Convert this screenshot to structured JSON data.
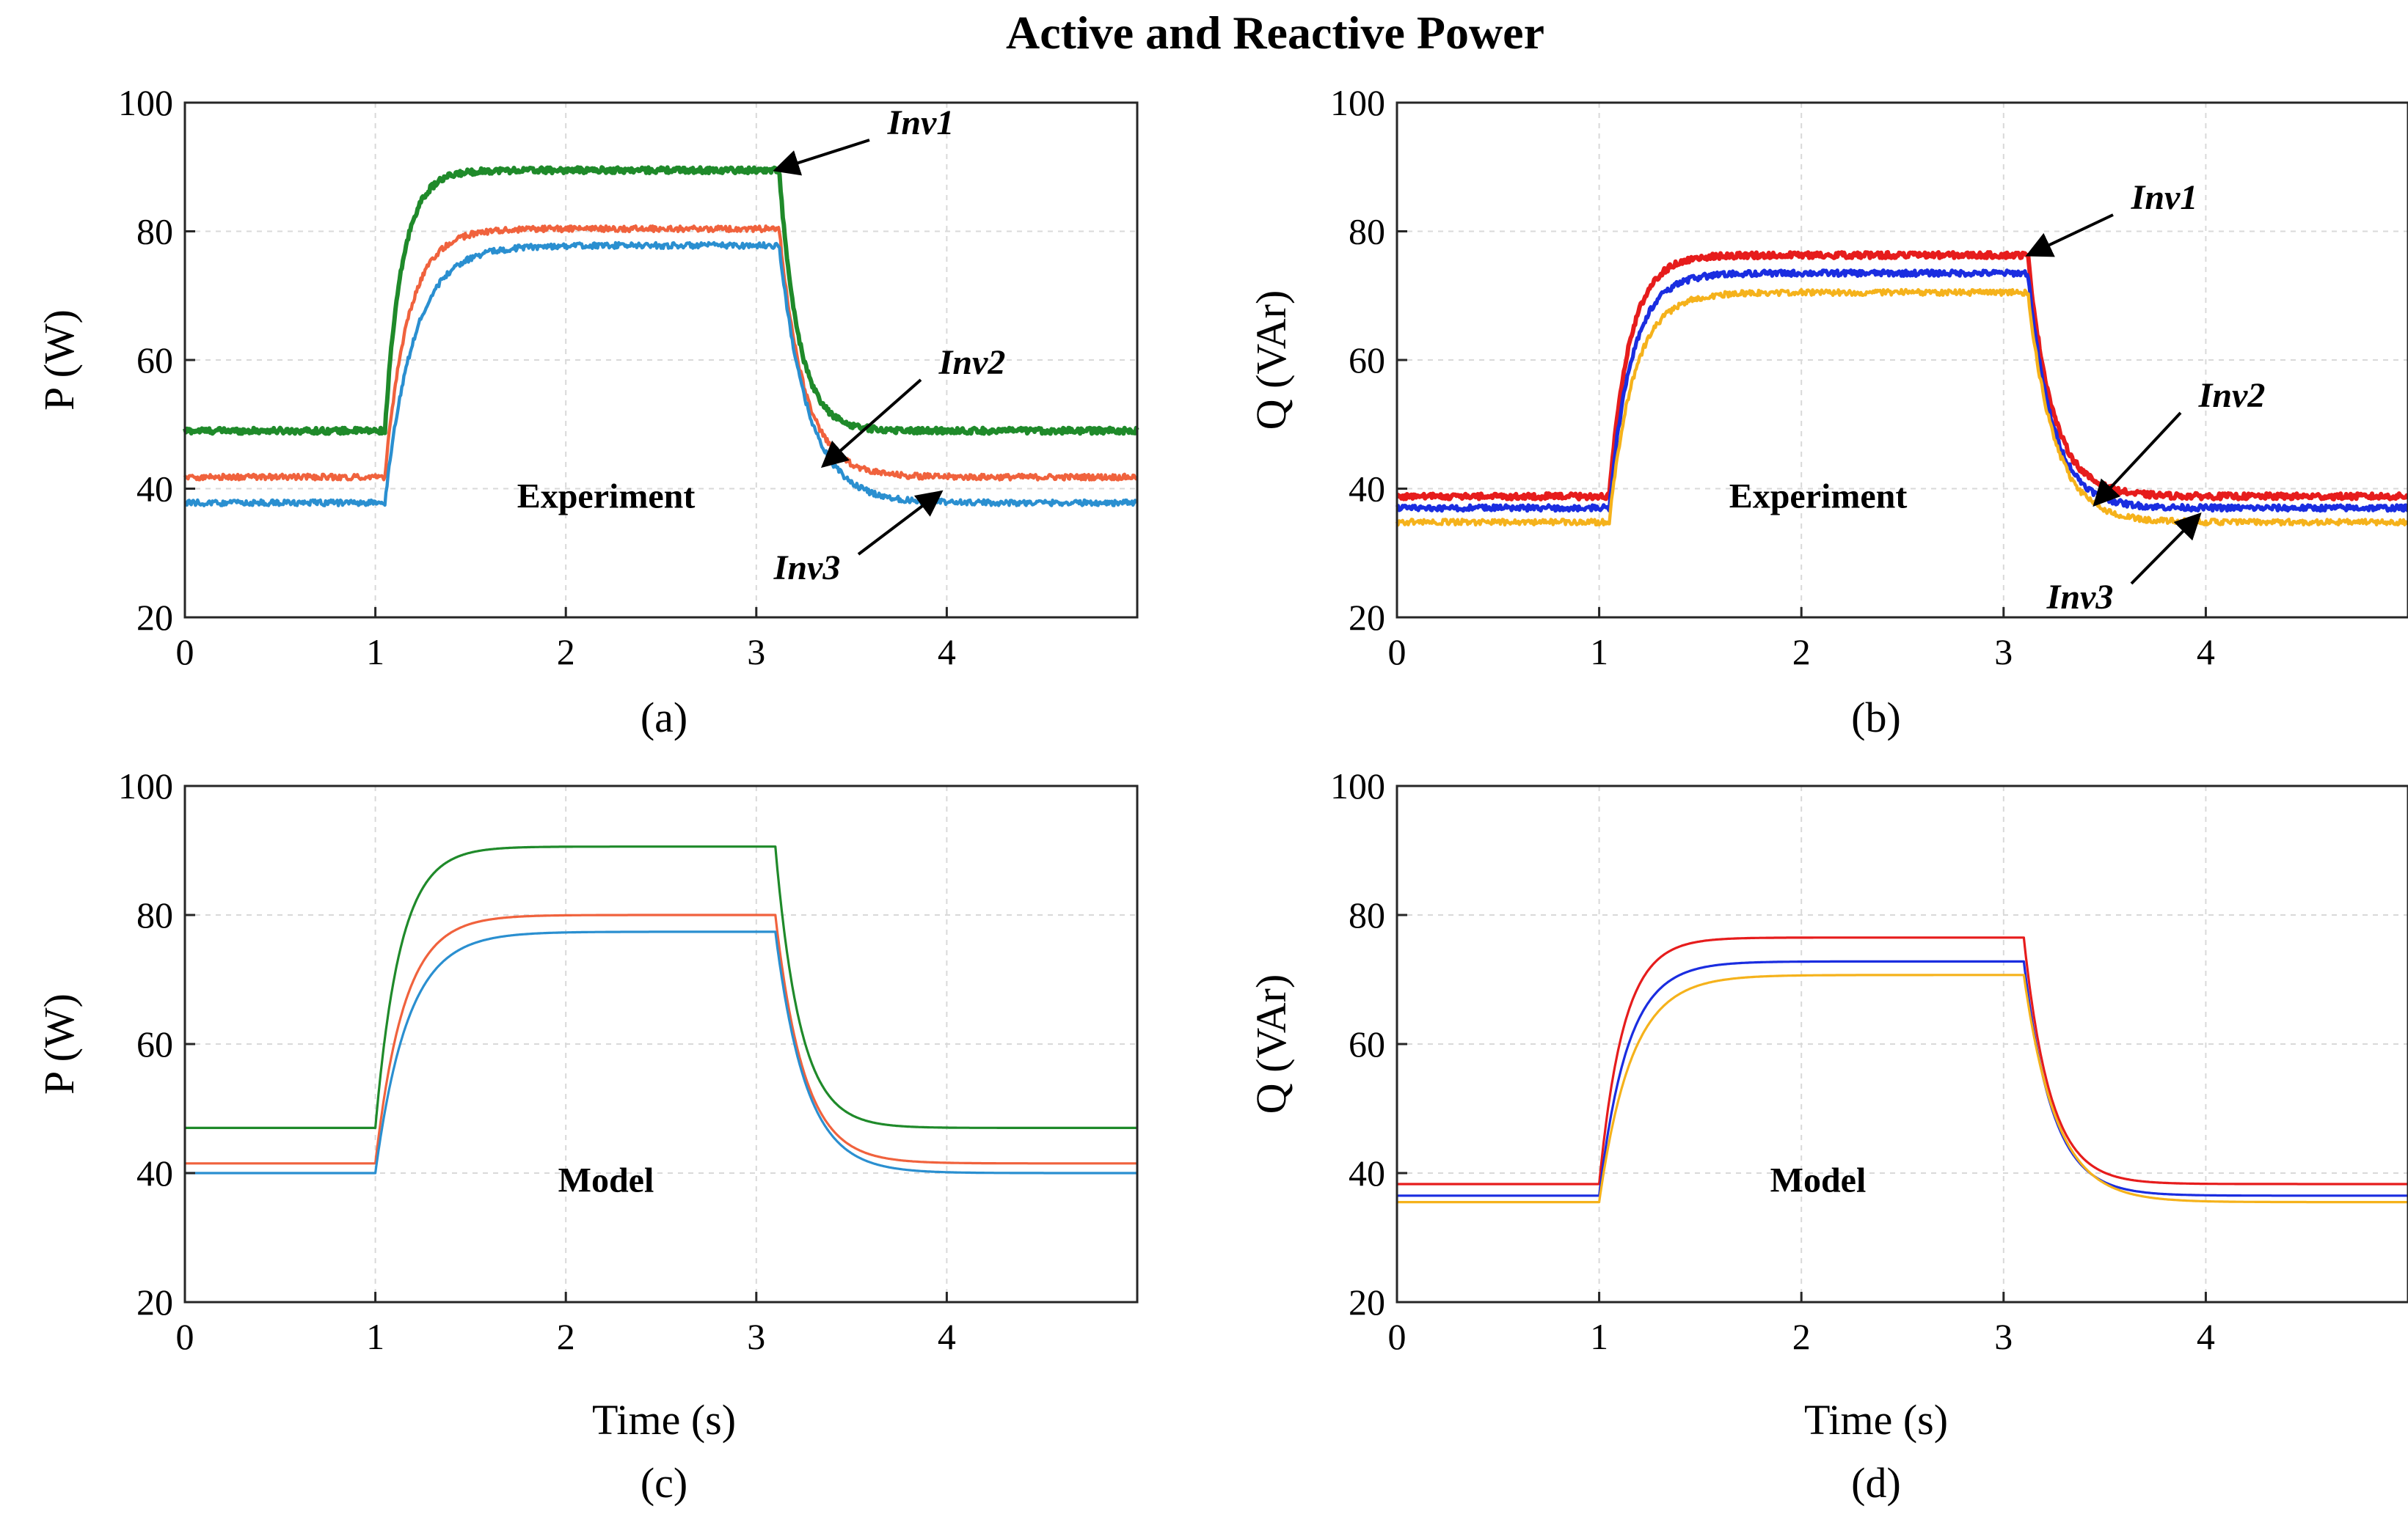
{
  "figure": {
    "title": "Active and Reactive Power"
  },
  "chart_data": [
    {
      "panel": "a",
      "type": "line",
      "caption": "(a)",
      "note": "Experiment",
      "ylabel": "P (W)",
      "xlabel": "",
      "xlim": [
        0,
        5
      ],
      "ylim": [
        20,
        100
      ],
      "xticks": [
        0,
        1,
        2,
        3,
        4
      ],
      "yticks": [
        20,
        40,
        60,
        80,
        100
      ],
      "grid": true,
      "noisy": true,
      "series": [
        {
          "name": "Inv1",
          "color": "#1f8a2a",
          "weight": 3.0,
          "base": 49,
          "high": 89.5,
          "t_on": 1.05,
          "t_off": 3.12,
          "tau_rise": 0.09,
          "tau_fall": 0.1
        },
        {
          "name": "Inv2",
          "color": "#f0623d",
          "weight": 2.2,
          "base": 41.8,
          "high": 80.4,
          "t_on": 1.05,
          "t_off": 3.12,
          "tau_rise": 0.12,
          "tau_fall": 0.13
        },
        {
          "name": "Inv3",
          "color": "#2a8fd0",
          "weight": 2.2,
          "base": 37.8,
          "high": 77.8,
          "t_on": 1.05,
          "t_off": 3.12,
          "tau_rise": 0.15,
          "tau_fall": 0.15
        }
      ],
      "annotations": [
        {
          "text": "Inv1",
          "series": "Inv1",
          "point": [
            3.1,
            89.5
          ]
        },
        {
          "text": "Inv2",
          "series": "Inv2",
          "point": [
            3.35,
            43.5
          ]
        },
        {
          "text": "Inv3",
          "series": "Inv3",
          "point": [
            3.97,
            39.5
          ]
        }
      ]
    },
    {
      "panel": "b",
      "type": "line",
      "caption": "(b)",
      "note": "Experiment",
      "ylabel": "Q (VAr)",
      "xlabel": "",
      "xlim": [
        0,
        5
      ],
      "ylim": [
        20,
        100
      ],
      "xticks": [
        0,
        1,
        2,
        3,
        4
      ],
      "yticks": [
        20,
        40,
        60,
        80,
        100
      ],
      "grid": true,
      "noisy": true,
      "series": [
        {
          "name": "Inv1",
          "color": "#e61c1c",
          "weight": 3.0,
          "base": 38.8,
          "high": 76.3,
          "t_on": 1.05,
          "t_off": 3.12,
          "tau_rise": 0.1,
          "tau_fall": 0.12
        },
        {
          "name": "Inv2",
          "color": "#1a2de0",
          "weight": 2.6,
          "base": 37,
          "high": 73.5,
          "t_on": 1.05,
          "t_off": 3.12,
          "tau_rise": 0.11,
          "tau_fall": 0.12
        },
        {
          "name": "Inv3",
          "color": "#f5b21b",
          "weight": 2.2,
          "base": 34.8,
          "high": 70.5,
          "t_on": 1.05,
          "t_off": 3.12,
          "tau_rise": 0.12,
          "tau_fall": 0.13
        }
      ],
      "annotations": [
        {
          "text": "Inv1",
          "series": "Inv1",
          "point": [
            3.12,
            76.3
          ]
        },
        {
          "text": "Inv2",
          "series": "Inv2",
          "point": [
            3.45,
            37.5
          ]
        },
        {
          "text": "Inv3",
          "series": "Inv3",
          "point": [
            3.97,
            36
          ]
        }
      ]
    },
    {
      "panel": "c",
      "type": "line",
      "caption": "(c)",
      "note": "Model",
      "ylabel": "P (W)",
      "xlabel": "Time (s)",
      "xlim": [
        0,
        5
      ],
      "ylim": [
        20,
        100
      ],
      "xticks": [
        0,
        1,
        2,
        3,
        4
      ],
      "yticks": [
        20,
        40,
        60,
        80,
        100
      ],
      "grid": true,
      "noisy": false,
      "series": [
        {
          "name": "Inv1",
          "color": "#1f8a2a",
          "weight": 1.6,
          "base": 47,
          "high": 90.6,
          "t_on": 1.0,
          "t_off": 3.1,
          "tau_rise": 0.13,
          "tau_fall": 0.13
        },
        {
          "name": "Inv2",
          "color": "#f0623d",
          "weight": 1.6,
          "base": 41.5,
          "high": 80,
          "t_on": 1.0,
          "t_off": 3.1,
          "tau_rise": 0.15,
          "tau_fall": 0.15
        },
        {
          "name": "Inv3",
          "color": "#2a8fd0",
          "weight": 1.6,
          "base": 40,
          "high": 77.4,
          "t_on": 1.0,
          "t_off": 3.1,
          "tau_rise": 0.17,
          "tau_fall": 0.16
        }
      ],
      "annotations": []
    },
    {
      "panel": "d",
      "type": "line",
      "caption": "(d)",
      "note": "Model",
      "ylabel": "Q (VAr)",
      "xlabel": "Time (s)",
      "xlim": [
        0,
        5
      ],
      "ylim": [
        20,
        100
      ],
      "xticks": [
        0,
        1,
        2,
        3,
        4
      ],
      "yticks": [
        20,
        40,
        60,
        80,
        100
      ],
      "grid": true,
      "noisy": false,
      "series": [
        {
          "name": "Inv1",
          "color": "#e61c1c",
          "weight": 1.6,
          "base": 38.3,
          "high": 76.5,
          "t_on": 1.0,
          "t_off": 3.1,
          "tau_rise": 0.12,
          "tau_fall": 0.13
        },
        {
          "name": "Inv2",
          "color": "#1a2de0",
          "weight": 1.6,
          "base": 36.5,
          "high": 72.8,
          "t_on": 1.0,
          "t_off": 3.1,
          "tau_rise": 0.14,
          "tau_fall": 0.14
        },
        {
          "name": "Inv3",
          "color": "#f5b21b",
          "weight": 1.6,
          "base": 35.5,
          "high": 70.7,
          "t_on": 1.0,
          "t_off": 3.1,
          "tau_rise": 0.16,
          "tau_fall": 0.16
        }
      ],
      "annotations": []
    }
  ]
}
